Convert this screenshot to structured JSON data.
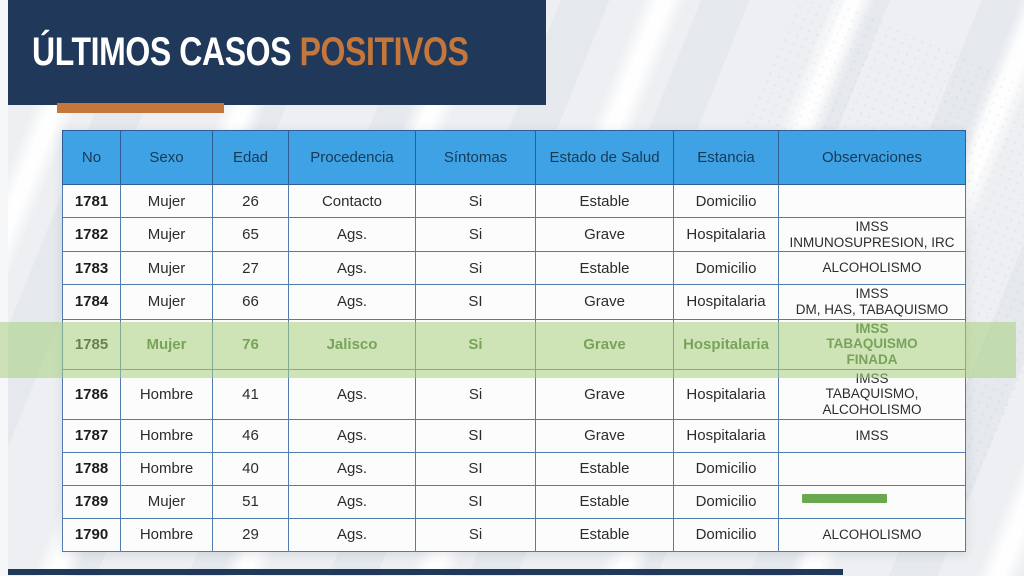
{
  "slide": {
    "title": {
      "primary": "ÚLTIMOS CASOS ",
      "accent": "POSITIVOS"
    },
    "colors": {
      "navy": "#20395a",
      "orange_accent": "#c4763b",
      "table_header_blue": "#3fa2e4",
      "table_border_blue": "#527cb0",
      "highlight_green": "#a8d07e",
      "marker_green": "#69a84e"
    }
  },
  "table": {
    "columns": [
      "No",
      "Sexo",
      "Edad",
      "Procedencia",
      "Síntomas",
      "Estado de Salud",
      "Estancia",
      "Observaciones"
    ],
    "rows": [
      {
        "no": "1781",
        "sexo": "Mujer",
        "edad": "26",
        "procedencia": "Contacto",
        "sintomas": "Si",
        "estado_de_salud": "Estable",
        "estancia": "Domicilio",
        "observaciones": "",
        "highlighted": false
      },
      {
        "no": "1782",
        "sexo": "Mujer",
        "edad": "65",
        "procedencia": "Ags.",
        "sintomas": "Si",
        "estado_de_salud": "Grave",
        "estancia": "Hospitalaria",
        "observaciones": "IMSS\nINMUNOSUPRESION, IRC",
        "highlighted": false
      },
      {
        "no": "1783",
        "sexo": "Mujer",
        "edad": "27",
        "procedencia": "Ags.",
        "sintomas": "Si",
        "estado_de_salud": "Estable",
        "estancia": "Domicilio",
        "observaciones": "ALCOHOLISMO",
        "highlighted": false
      },
      {
        "no": "1784",
        "sexo": "Mujer",
        "edad": "66",
        "procedencia": "Ags.",
        "sintomas": "SI",
        "estado_de_salud": "Grave",
        "estancia": "Hospitalaria",
        "observaciones": "IMSS\nDM, HAS, TABAQUISMO",
        "highlighted": false
      },
      {
        "no": "1785",
        "sexo": "Mujer",
        "edad": "76",
        "procedencia": "Jalisco",
        "sintomas": "Si",
        "estado_de_salud": "Grave",
        "estancia": "Hospitalaria",
        "observaciones": "IMSS\nTABAQUISMO\nFINADA",
        "highlighted": true
      },
      {
        "no": "1786",
        "sexo": "Hombre",
        "edad": "41",
        "procedencia": "Ags.",
        "sintomas": "Si",
        "estado_de_salud": "Grave",
        "estancia": "Hospitalaria",
        "observaciones": "IMSS\nTABAQUISMO,\nALCOHOLISMO",
        "highlighted": false
      },
      {
        "no": "1787",
        "sexo": "Hombre",
        "edad": "46",
        "procedencia": "Ags.",
        "sintomas": "SI",
        "estado_de_salud": "Grave",
        "estancia": "Hospitalaria",
        "observaciones": "IMSS",
        "highlighted": false
      },
      {
        "no": "1788",
        "sexo": "Hombre",
        "edad": "40",
        "procedencia": "Ags.",
        "sintomas": "SI",
        "estado_de_salud": "Estable",
        "estancia": "Domicilio",
        "observaciones": "",
        "highlighted": false
      },
      {
        "no": "1789",
        "sexo": "Mujer",
        "edad": "51",
        "procedencia": "Ags.",
        "sintomas": "SI",
        "estado_de_salud": "Estable",
        "estancia": "Domicilio",
        "observaciones": "",
        "highlighted": false
      },
      {
        "no": "1790",
        "sexo": "Hombre",
        "edad": "29",
        "procedencia": "Ags.",
        "sintomas": "Si",
        "estado_de_salud": "Estable",
        "estancia": "Domicilio",
        "observaciones": "ALCOHOLISMO",
        "highlighted": false
      }
    ]
  }
}
